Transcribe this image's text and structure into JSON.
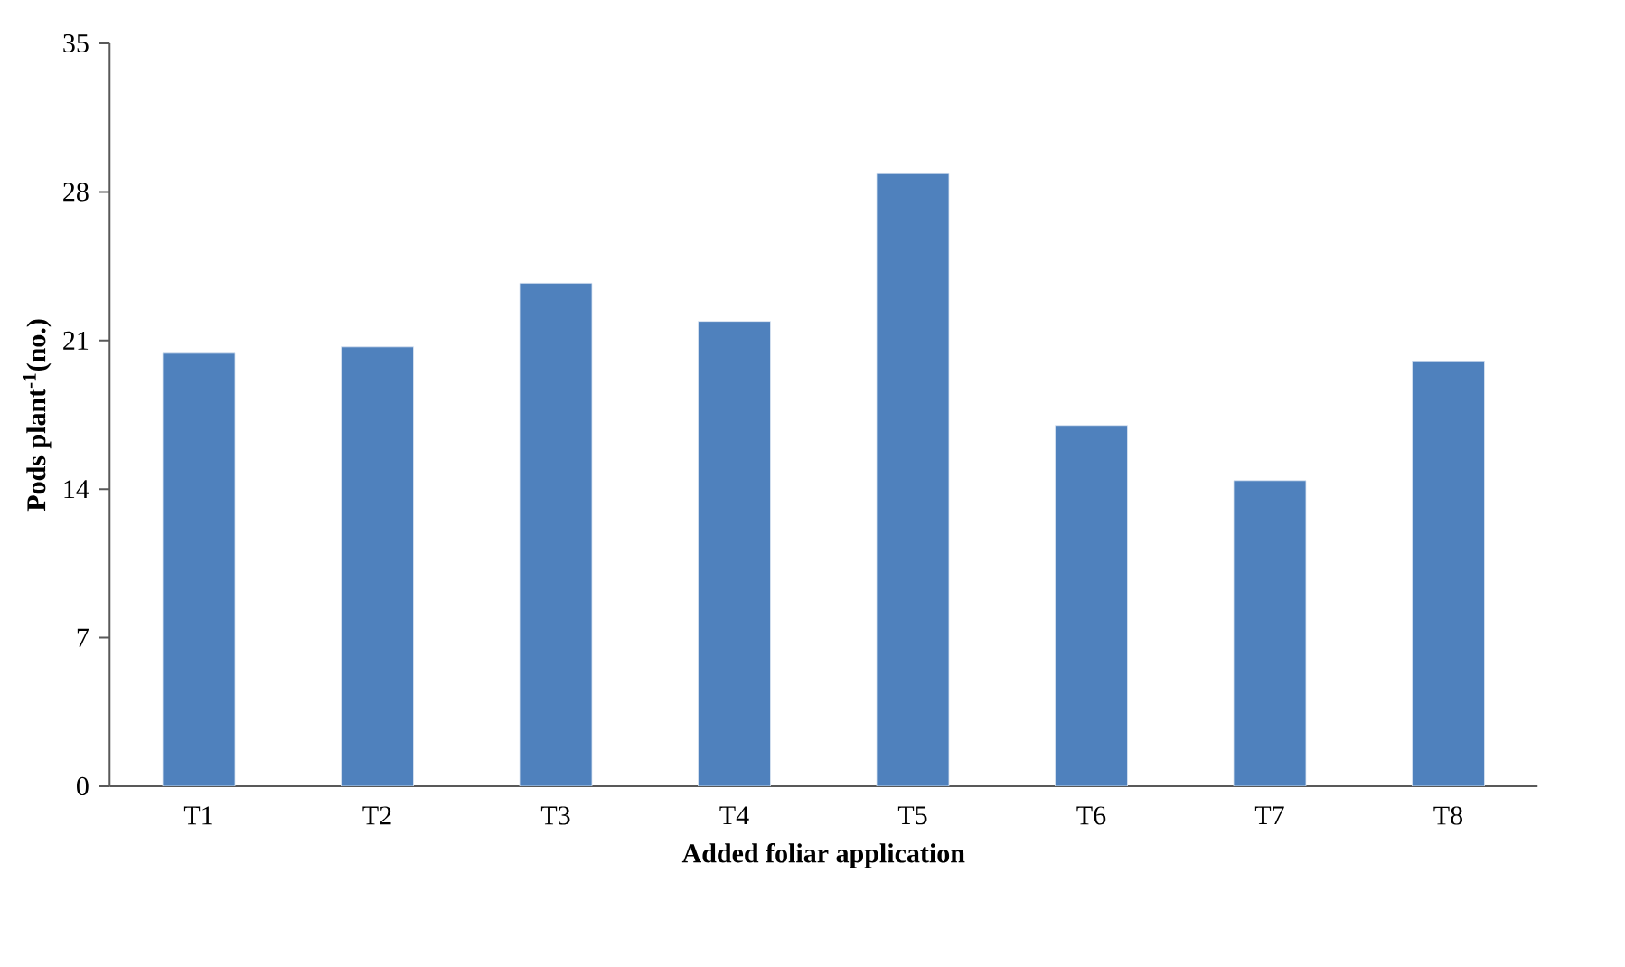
{
  "chart_data": {
    "type": "bar",
    "xlabel": "Added foliar application",
    "ylabel": "Pods plant$^{-1}$(no.)",
    "categories": [
      "T1",
      "T2",
      "T3",
      "T4",
      "T5",
      "T6",
      "T7",
      "T8"
    ],
    "values": [
      20.4,
      20.7,
      23.7,
      21.9,
      28.9,
      17.0,
      14.4,
      20.0
    ],
    "color": "#4f81bd",
    "ylim": [
      0,
      35
    ],
    "yticks": [
      0,
      7,
      14,
      21,
      28,
      35
    ],
    "grid": false
  }
}
